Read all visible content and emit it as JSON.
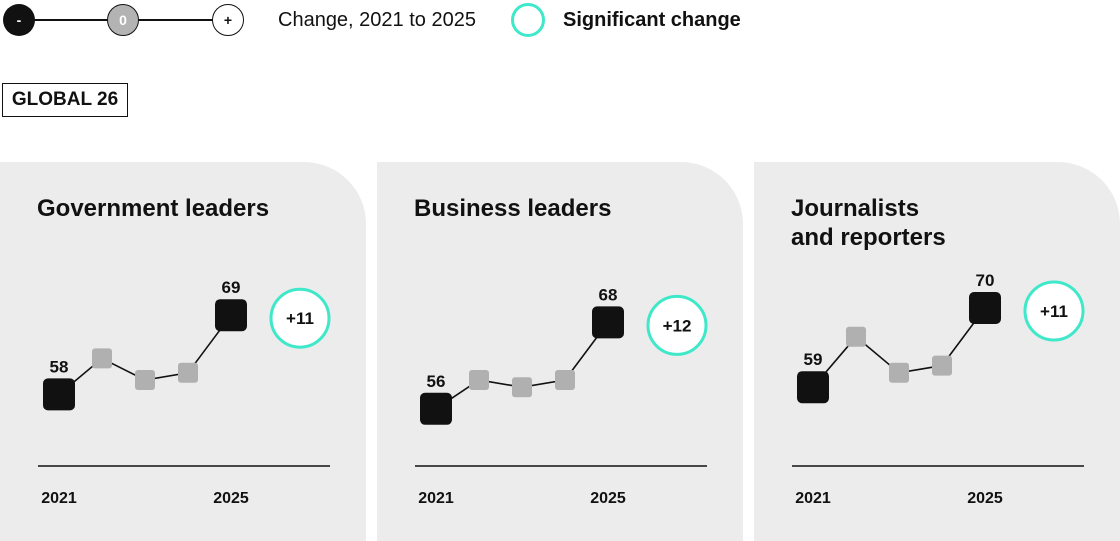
{
  "legend": {
    "minus_label": "-",
    "zero_label": "0",
    "plus_label": "+",
    "change_text": "Change, 2021 to 2025",
    "significant_text": "Significant change",
    "significant_color": "#3ee8c9"
  },
  "badge": {
    "label": "GLOBAL 26"
  },
  "chart_data": [
    {
      "type": "line",
      "title": "Government leaders",
      "x": [
        "2021",
        "2022",
        "2023",
        "2024",
        "2025"
      ],
      "values": [
        58,
        63,
        60,
        61,
        69
      ],
      "labels": [
        "58",
        "",
        "",
        "",
        "69"
      ],
      "xlabels": [
        "2021",
        "",
        "",
        "",
        "2025"
      ],
      "ylim": [
        50,
        75
      ],
      "change": "+11",
      "significant": true
    },
    {
      "type": "line",
      "title": "Business leaders",
      "x": [
        "2021",
        "2022",
        "2023",
        "2024",
        "2025"
      ],
      "values": [
        56,
        60,
        59,
        60,
        68
      ],
      "labels": [
        "56",
        "",
        "",
        "",
        "68"
      ],
      "xlabels": [
        "2021",
        "",
        "",
        "",
        "2025"
      ],
      "ylim": [
        50,
        75
      ],
      "change": "+12",
      "significant": true
    },
    {
      "type": "line",
      "title": "Journalists and reporters",
      "title_lines": [
        "Journalists",
        "and reporters"
      ],
      "x": [
        "2021",
        "2022",
        "2023",
        "2024",
        "2025"
      ],
      "values": [
        59,
        66,
        61,
        62,
        70
      ],
      "labels": [
        "59",
        "",
        "",
        "",
        "70"
      ],
      "xlabels": [
        "2021",
        "",
        "",
        "",
        "2025"
      ],
      "ylim": [
        50,
        75
      ],
      "change": "+11",
      "significant": true
    }
  ]
}
